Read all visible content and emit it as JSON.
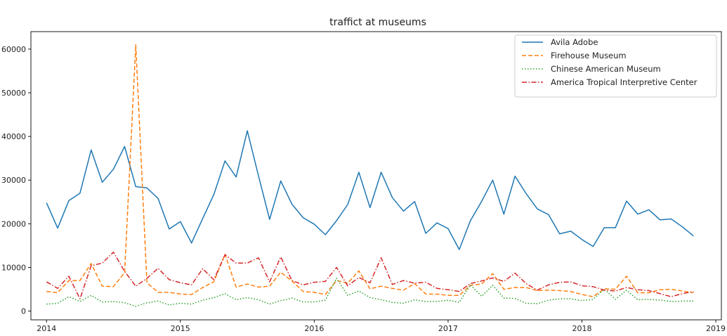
{
  "chart_data": {
    "type": "line",
    "title": "traffict at museums",
    "xlabel": "",
    "ylabel": "",
    "x_start": "2014-01",
    "x_end": "2018-11",
    "xlim": [
      "2014-01",
      "2019-01"
    ],
    "ylim": [
      -2000,
      64000
    ],
    "x_ticks": [
      "2014",
      "2015",
      "2016",
      "2017",
      "2018",
      "2019"
    ],
    "y_ticks": [
      0,
      10000,
      20000,
      30000,
      40000,
      50000,
      60000
    ],
    "grid": false,
    "legend_position": "top-right",
    "series": [
      {
        "name": "Avila Adobe",
        "color": "#1f77b4",
        "style": "solid",
        "values": [
          24800,
          19000,
          25300,
          27000,
          36900,
          29500,
          32500,
          37700,
          28500,
          28200,
          25800,
          18800,
          20500,
          15600,
          21200,
          26700,
          34400,
          30700,
          41300,
          31000,
          21000,
          29800,
          24500,
          21400,
          19900,
          17500,
          20700,
          24400,
          31800,
          23700,
          31800,
          26000,
          22900,
          25100,
          17800,
          20200,
          18900,
          14100,
          20700,
          25100,
          30000,
          22200,
          30900,
          26900,
          23400,
          22100,
          17700,
          18300,
          16400,
          14800,
          19100,
          19100,
          25200,
          22200,
          23200,
          20900,
          21100,
          19300,
          17200
        ]
      },
      {
        "name": "Firehouse Museum",
        "color": "#ff7f0e",
        "style": "dashed",
        "values": [
          4500,
          4200,
          7000,
          7000,
          10900,
          5700,
          5600,
          8800,
          61000,
          6500,
          4300,
          4300,
          3900,
          3800,
          5400,
          6700,
          13000,
          5500,
          6200,
          5500,
          5700,
          8900,
          6900,
          4500,
          4300,
          3800,
          7000,
          6400,
          9200,
          5100,
          5700,
          5200,
          4800,
          6300,
          3900,
          3900,
          3600,
          3600,
          5900,
          6200,
          8600,
          5000,
          5400,
          5400,
          4700,
          4800,
          4700,
          4500,
          3800,
          3300,
          5100,
          5000,
          8000,
          4200,
          4200,
          4900,
          5000,
          4600,
          4200
        ]
      },
      {
        "name": "Chinese American Museum",
        "color": "#2ca02c",
        "style": "dotted",
        "values": [
          1600,
          1800,
          3300,
          2200,
          3600,
          2100,
          2200,
          1900,
          1100,
          1900,
          2300,
          1400,
          1800,
          1600,
          2500,
          3100,
          4000,
          2600,
          3100,
          2600,
          1600,
          2400,
          3000,
          2100,
          2100,
          2500,
          7500,
          3600,
          4600,
          3100,
          2600,
          2000,
          1800,
          2600,
          2200,
          2200,
          2500,
          2000,
          6000,
          3400,
          5900,
          3000,
          2900,
          1800,
          1700,
          2500,
          2800,
          2800,
          2400,
          2700,
          5000,
          2700,
          4800,
          2600,
          2700,
          2500,
          2200,
          2300,
          2300
        ]
      },
      {
        "name": "America Tropical Interpretive Center",
        "color": "#d62728",
        "style": "dashdot",
        "values": [
          6700,
          5200,
          8000,
          2800,
          10400,
          11000,
          13500,
          9100,
          5700,
          7500,
          9800,
          7200,
          6500,
          6000,
          9700,
          7200,
          12900,
          11000,
          11000,
          12200,
          6700,
          12400,
          7000,
          6000,
          6600,
          6800,
          10000,
          5800,
          7700,
          6500,
          12200,
          6100,
          7000,
          6400,
          6600,
          5200,
          4900,
          4500,
          6300,
          6900,
          7600,
          6800,
          8700,
          6300,
          4800,
          6000,
          6600,
          6700,
          5800,
          5600,
          4800,
          4600,
          5400,
          4900,
          4700,
          4000,
          3300,
          4000,
          4500
        ]
      }
    ]
  }
}
